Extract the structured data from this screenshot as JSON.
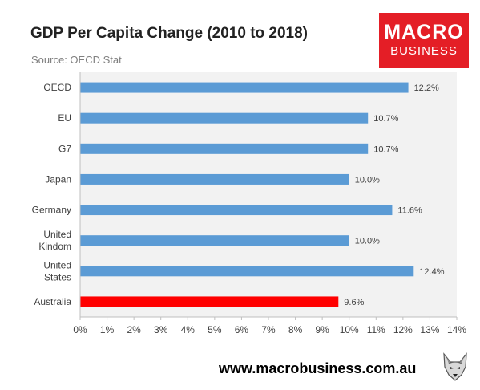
{
  "header": {
    "title": "GDP Per Capita Change (2010 to 2018)",
    "subtitle": "Source: OECD Stat"
  },
  "logo": {
    "line1": "MACRO",
    "line2": "BUSINESS",
    "color": "#e41e26"
  },
  "footer": {
    "url": "www.macrobusiness.com.au",
    "emblem_icon": "wolf-head-icon"
  },
  "chart_data": {
    "type": "bar",
    "orientation": "horizontal",
    "categories": [
      "OECD",
      "EU",
      "G7",
      "Japan",
      "Germany",
      "United Kindom",
      "United States",
      "Australia"
    ],
    "category_label_lines": [
      [
        "OECD"
      ],
      [
        "EU"
      ],
      [
        "G7"
      ],
      [
        "Japan"
      ],
      [
        "Germany"
      ],
      [
        "United",
        "Kindom"
      ],
      [
        "United",
        "States"
      ],
      [
        "Australia"
      ]
    ],
    "values": [
      12.2,
      10.7,
      10.7,
      10.0,
      11.6,
      10.0,
      12.4,
      9.6
    ],
    "data_labels": [
      "12.2%",
      "10.7%",
      "10.7%",
      "10.0%",
      "11.6%",
      "10.0%",
      "12.4%",
      "9.6%"
    ],
    "bar_colors": [
      "#5b9bd5",
      "#5b9bd5",
      "#5b9bd5",
      "#5b9bd5",
      "#5b9bd5",
      "#5b9bd5",
      "#5b9bd5",
      "#ff0000"
    ],
    "xlim": [
      0,
      14
    ],
    "xticks": [
      "0%",
      "1%",
      "2%",
      "3%",
      "4%",
      "5%",
      "6%",
      "7%",
      "8%",
      "9%",
      "10%",
      "11%",
      "12%",
      "13%",
      "14%"
    ],
    "xlabel": "",
    "ylabel": "",
    "grid": false,
    "plot_background": "#f2f2f2"
  }
}
